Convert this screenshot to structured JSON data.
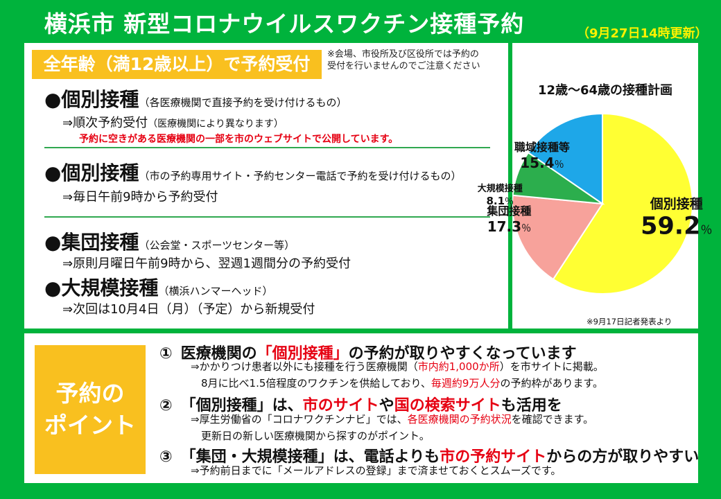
{
  "header": {
    "title": "横浜市 新型コロナウイルスワクチン接種予約",
    "updated": "（9月27日14時更新）"
  },
  "banner": "全年齢（満12歳以上）で予約受付",
  "note": {
    "line1": "※会場、市役所及び区役所では予約の",
    "line2": "受付を行いませんのでご注意ください"
  },
  "sections": [
    {
      "title": "●個別接種",
      "sub": "（各医療機関で直接予約を受け付けるもの）",
      "detail": "⇒順次予約受付",
      "detail_small": "（医療機関により異なります）",
      "extra": "予約に空きがある医療機関の一部を市のウェブサイトで公開しています。"
    },
    {
      "title": "●個別接種",
      "sub": "（市の予約専用サイト・予約センター電話で予約を受け付けるもの）",
      "detail": "⇒毎日午前9時から予約受付"
    },
    {
      "title": "●集団接種",
      "sub": "（公会堂・スポーツセンター等）",
      "detail": "⇒原則月曜日午前9時から、翌週1週間分の予約受付"
    },
    {
      "title": "●大規模接種",
      "sub": "（横浜ハンマーヘッド）",
      "detail": "⇒次回は10月4日（月）（予定）から新規受付"
    }
  ],
  "chart_data": {
    "type": "pie",
    "title": "12歳～64歳の接種計画",
    "categories": [
      "個別接種",
      "集団接種",
      "大規模接種",
      "職域接種等"
    ],
    "values": [
      59.2,
      17.3,
      8.1,
      15.4
    ],
    "labels": [
      "59.2",
      "17.3",
      "8.1",
      "15.4"
    ],
    "unit": "％",
    "colors": [
      "#ffff33",
      "#f7a29b",
      "#2cae4d",
      "#1ea7e8"
    ],
    "source_note": "※9月17日記者発表より"
  },
  "points": {
    "title_line1": "予約の",
    "title_line2": "ポイント",
    "items": [
      {
        "num": "①",
        "parts": [
          {
            "t": "医療機関の"
          },
          {
            "t": "「個別接種」",
            "r": true
          },
          {
            "t": "の予約が取りやすくなっています"
          }
        ],
        "details": [
          [
            {
              "t": "⇒かかりつけ患者以外にも接種を行う医療機関（"
            },
            {
              "t": "市内約1,000か所",
              "r": true
            },
            {
              "t": "）を市サイトに掲載。"
            }
          ],
          [
            {
              "t": "8月に比べ1.5倍程度のワクチンを供給しており、"
            },
            {
              "t": "毎週約9万人分",
              "r": true
            },
            {
              "t": "の予約枠があります。"
            }
          ]
        ]
      },
      {
        "num": "②",
        "parts": [
          {
            "t": "「個別接種」は、"
          },
          {
            "t": "市のサイト",
            "r": true
          },
          {
            "t": "や"
          },
          {
            "t": "国の検索サイト",
            "r": true
          },
          {
            "t": "も活用を"
          }
        ],
        "details": [
          [
            {
              "t": "⇒厚生労働省の「コロナワクチンナビ」では、"
            },
            {
              "t": "各医療機関の予約状況",
              "r": true
            },
            {
              "t": "を確認できます。"
            }
          ],
          [
            {
              "t": "更新日の新しい医療機関から探すのがポイント。"
            }
          ]
        ]
      },
      {
        "num": "③",
        "parts": [
          {
            "t": "「集団・大規模接種」は、電話よりも"
          },
          {
            "t": "市の予約サイト",
            "r": true
          },
          {
            "t": "からの方が取りやすい"
          }
        ],
        "details": [
          [
            {
              "t": "⇒予約前日までに「メールアドレスの登録」まで済ませておくとスムーズです。"
            }
          ]
        ]
      }
    ]
  }
}
